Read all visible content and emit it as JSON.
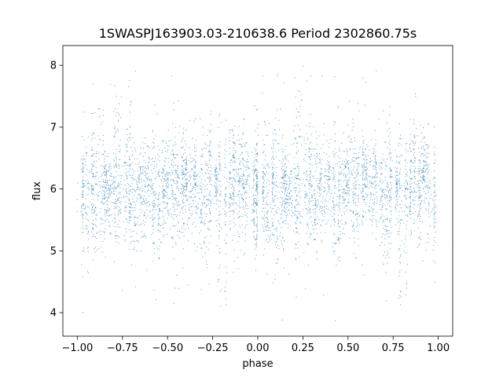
{
  "chart_data": {
    "type": "scatter",
    "title": "1SWASPJ163903.03-210638.6 Period 2302860.75s",
    "xlabel": "phase",
    "ylabel": "flux",
    "xlim": [
      -1.08,
      1.08
    ],
    "ylim": [
      3.62,
      8.32
    ],
    "xticks": [
      -1.0,
      -0.75,
      -0.5,
      -0.25,
      0.0,
      0.25,
      0.5,
      0.75,
      1.0
    ],
    "xtick_labels": [
      "−1.00",
      "−0.75",
      "−0.50",
      "−0.25",
      "0.00",
      "0.25",
      "0.50",
      "0.75",
      "1.00"
    ],
    "yticks": [
      4,
      5,
      6,
      7,
      8
    ],
    "ytick_labels": [
      "4",
      "5",
      "6",
      "7",
      "8"
    ],
    "grid": false,
    "point_color": "#1f77b4",
    "approx_point_count": 5000,
    "baseline_flux": 6.0,
    "typical_flux_range": [
      4.8,
      7.2
    ],
    "extreme_flux_range": [
      3.8,
      8.05
    ],
    "periodicity_in_phase": 1.0,
    "phase_features": [
      {
        "phase": -0.88,
        "flux_low": 5.0,
        "flux_high": 7.3
      },
      {
        "phase": -0.78,
        "flux_low": 5.2,
        "flux_high": 7.6
      },
      {
        "phase": -0.55,
        "flux_low": 4.7,
        "flux_high": 6.8
      },
      {
        "phase": -0.2,
        "flux_low": 4.0,
        "flux_high": 6.7
      },
      {
        "phase": 0.12,
        "flux_low": 5.0,
        "flux_high": 7.3
      },
      {
        "phase": 0.22,
        "flux_low": 5.2,
        "flux_high": 7.6
      },
      {
        "phase": 0.45,
        "flux_low": 4.7,
        "flux_high": 6.8
      },
      {
        "phase": 0.8,
        "flux_low": 4.0,
        "flux_high": 6.7
      }
    ]
  }
}
